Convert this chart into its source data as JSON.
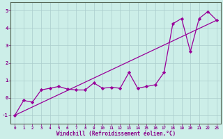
{
  "xlabel": "Windchill (Refroidissement éolien,°C)",
  "bg_color": "#cceee8",
  "line_color": "#990099",
  "grid_color": "#aacccc",
  "x_data": [
    0,
    1,
    2,
    3,
    4,
    5,
    6,
    7,
    8,
    9,
    10,
    11,
    12,
    13,
    14,
    15,
    16,
    17,
    18,
    19,
    20,
    21,
    22,
    23
  ],
  "y_data": [
    -1.0,
    -0.15,
    -0.25,
    0.45,
    0.55,
    0.65,
    0.5,
    0.45,
    0.45,
    0.85,
    0.55,
    0.6,
    0.55,
    1.45,
    0.55,
    0.65,
    0.75,
    1.45,
    4.25,
    4.55,
    2.65,
    4.55,
    4.95,
    4.45
  ],
  "ylim": [
    -1.5,
    5.5
  ],
  "xlim": [
    -0.5,
    23.5
  ],
  "yticks": [
    -1,
    0,
    1,
    2,
    3,
    4,
    5
  ],
  "xticks": [
    0,
    1,
    2,
    3,
    4,
    5,
    6,
    7,
    8,
    9,
    10,
    11,
    12,
    13,
    14,
    15,
    16,
    17,
    18,
    19,
    20,
    21,
    22,
    23
  ],
  "tick_color": "#880088",
  "label_color": "#880088",
  "spine_color": "#556655"
}
